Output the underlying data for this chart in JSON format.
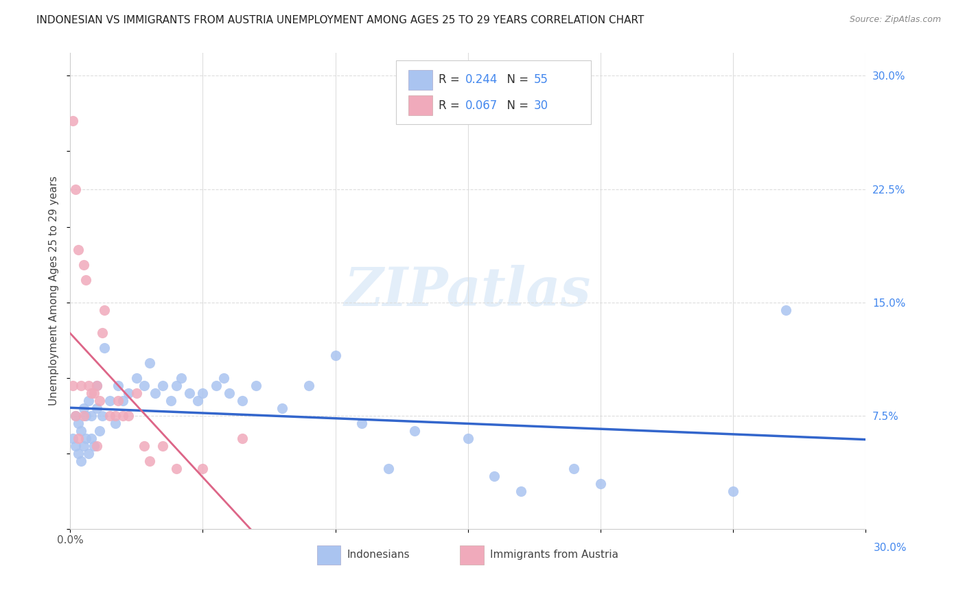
{
  "title": "INDONESIAN VS IMMIGRANTS FROM AUSTRIA UNEMPLOYMENT AMONG AGES 25 TO 29 YEARS CORRELATION CHART",
  "source": "Source: ZipAtlas.com",
  "ylabel": "Unemployment Among Ages 25 to 29 years",
  "xlim": [
    0.0,
    0.3
  ],
  "ylim": [
    0.0,
    0.315
  ],
  "indonesian_color": "#aac4f0",
  "austria_color": "#f0aabb",
  "indonesian_line_color": "#3366cc",
  "austria_line_color": "#dd6688",
  "watermark": "ZIPatlas",
  "bg_color": "#ffffff",
  "indonesian_scatter_x": [
    0.001,
    0.002,
    0.002,
    0.003,
    0.003,
    0.004,
    0.004,
    0.005,
    0.005,
    0.006,
    0.006,
    0.007,
    0.007,
    0.008,
    0.008,
    0.009,
    0.01,
    0.01,
    0.011,
    0.012,
    0.013,
    0.015,
    0.017,
    0.018,
    0.02,
    0.022,
    0.025,
    0.028,
    0.03,
    0.032,
    0.035,
    0.038,
    0.04,
    0.042,
    0.045,
    0.048,
    0.05,
    0.055,
    0.058,
    0.06,
    0.065,
    0.07,
    0.08,
    0.09,
    0.1,
    0.11,
    0.12,
    0.13,
    0.15,
    0.16,
    0.17,
    0.19,
    0.2,
    0.25,
    0.27
  ],
  "indonesian_scatter_y": [
    0.06,
    0.055,
    0.075,
    0.05,
    0.07,
    0.045,
    0.065,
    0.055,
    0.08,
    0.06,
    0.075,
    0.05,
    0.085,
    0.06,
    0.075,
    0.055,
    0.08,
    0.095,
    0.065,
    0.075,
    0.12,
    0.085,
    0.07,
    0.095,
    0.085,
    0.09,
    0.1,
    0.095,
    0.11,
    0.09,
    0.095,
    0.085,
    0.095,
    0.1,
    0.09,
    0.085,
    0.09,
    0.095,
    0.1,
    0.09,
    0.085,
    0.095,
    0.08,
    0.095,
    0.115,
    0.07,
    0.04,
    0.065,
    0.06,
    0.035,
    0.025,
    0.04,
    0.03,
    0.025,
    0.145
  ],
  "austria_scatter_x": [
    0.001,
    0.001,
    0.002,
    0.002,
    0.003,
    0.003,
    0.004,
    0.005,
    0.005,
    0.006,
    0.007,
    0.008,
    0.009,
    0.01,
    0.01,
    0.011,
    0.012,
    0.013,
    0.015,
    0.017,
    0.018,
    0.02,
    0.022,
    0.025,
    0.028,
    0.03,
    0.035,
    0.04,
    0.05,
    0.065
  ],
  "austria_scatter_y": [
    0.27,
    0.095,
    0.225,
    0.075,
    0.185,
    0.06,
    0.095,
    0.175,
    0.075,
    0.165,
    0.095,
    0.09,
    0.09,
    0.095,
    0.055,
    0.085,
    0.13,
    0.145,
    0.075,
    0.075,
    0.085,
    0.075,
    0.075,
    0.09,
    0.055,
    0.045,
    0.055,
    0.04,
    0.04,
    0.06
  ]
}
